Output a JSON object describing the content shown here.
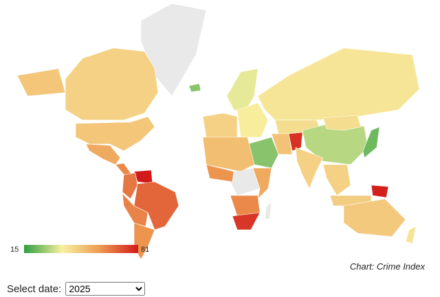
{
  "map": {
    "scale": {
      "min": 15,
      "max": 81,
      "colors": [
        "#2e9e3f",
        "#f7f1a1",
        "#ee9a52",
        "#d21a1a"
      ]
    },
    "no_data_color": "#e9e9e9",
    "values": [
      45,
      48,
      55,
      62,
      81,
      65,
      68,
      63,
      60,
      25,
      35,
      45,
      38,
      40,
      42,
      30,
      42,
      22,
      25,
      49,
      77,
      45,
      50,
      60,
      55,
      62,
      76,
      45,
      46,
      80,
      47,
      40
    ]
  },
  "caption": "Chart: Crime Index",
  "controls": {
    "label": "Select date:",
    "options": [
      "2025"
    ]
  }
}
